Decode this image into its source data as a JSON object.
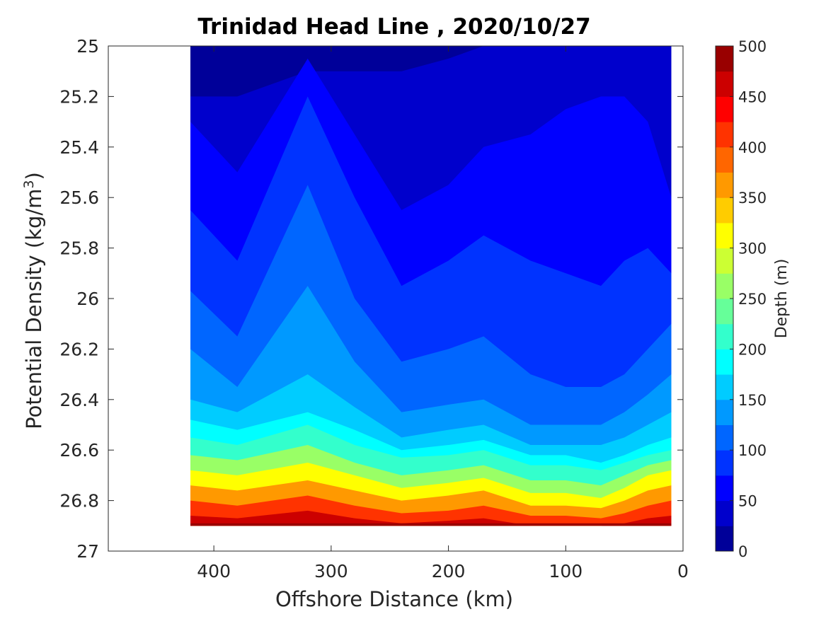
{
  "chart_data": {
    "type": "contour",
    "title": "Trinidad Head Line , 2020/10/27",
    "xlabel": "Offshore Distance (km)",
    "ylabel_main": "Potential Density (kg/m",
    "ylabel_sup": "3",
    "ylabel_close": ")",
    "x_reversed": true,
    "xlim": [
      0,
      490
    ],
    "ylim": [
      25,
      27
    ],
    "y_reversed": true,
    "xticks": [
      400,
      300,
      200,
      100,
      0
    ],
    "xtick_labels": [
      "400",
      "300",
      "200",
      "100",
      "0"
    ],
    "yticks": [
      25,
      25.2,
      25.4,
      25.6,
      25.8,
      26,
      26.2,
      26.4,
      26.6,
      26.8,
      27
    ],
    "ytick_labels": [
      "25",
      "25.2",
      "25.4",
      "25.6",
      "25.8",
      "26",
      "26.2",
      "26.4",
      "26.6",
      "26.8",
      "27"
    ],
    "colorbar": {
      "label": "Depth (m)",
      "range": [
        0,
        500
      ],
      "ticks": [
        0,
        50,
        100,
        150,
        200,
        250,
        300,
        350,
        400,
        450,
        500
      ],
      "tick_labels": [
        "0",
        "50",
        "100",
        "150",
        "200",
        "250",
        "300",
        "350",
        "400",
        "450",
        "500"
      ],
      "level_step": 25,
      "colormap": "jet"
    },
    "grid": false,
    "stations_x": [
      420,
      380,
      320,
      280,
      240,
      200,
      170,
      130,
      100,
      70,
      50,
      30,
      10
    ],
    "isopycnal_depth_contours": [
      {
        "depth": 25,
        "y": [
          25.2,
          25.2,
          25.1,
          25.1,
          25.1,
          25.05,
          25.0,
          25.0,
          25.0,
          25.0,
          25.0,
          25.0,
          25.0
        ]
      },
      {
        "depth": 50,
        "y": [
          25.3,
          25.5,
          25.05,
          25.35,
          25.65,
          25.55,
          25.4,
          25.35,
          25.25,
          25.2,
          25.2,
          25.3,
          25.6
        ]
      },
      {
        "depth": 75,
        "y": [
          25.65,
          25.85,
          25.2,
          25.6,
          25.95,
          25.85,
          25.75,
          25.85,
          25.9,
          25.95,
          25.85,
          25.8,
          25.9
        ]
      },
      {
        "depth": 100,
        "y": [
          25.97,
          26.15,
          25.55,
          26.0,
          26.25,
          26.2,
          26.15,
          26.3,
          26.35,
          26.35,
          26.3,
          26.2,
          26.1
        ]
      },
      {
        "depth": 125,
        "y": [
          26.2,
          26.35,
          25.95,
          26.25,
          26.45,
          26.42,
          26.4,
          26.5,
          26.5,
          26.5,
          26.45,
          26.38,
          26.3
        ]
      },
      {
        "depth": 150,
        "y": [
          26.4,
          26.45,
          26.3,
          26.43,
          26.55,
          26.52,
          26.5,
          26.58,
          26.58,
          26.58,
          26.55,
          26.5,
          26.45
        ]
      },
      {
        "depth": 175,
        "y": [
          26.48,
          26.52,
          26.45,
          26.52,
          26.6,
          26.58,
          26.56,
          26.62,
          26.62,
          26.65,
          26.62,
          26.58,
          26.55
        ]
      },
      {
        "depth": 200,
        "y": [
          26.55,
          26.58,
          26.5,
          26.58,
          26.63,
          26.62,
          26.6,
          26.66,
          26.66,
          26.68,
          26.65,
          26.62,
          26.6
        ]
      },
      {
        "depth": 250,
        "y": [
          26.62,
          26.64,
          26.58,
          26.65,
          26.7,
          26.68,
          26.66,
          26.72,
          26.72,
          26.74,
          26.7,
          26.66,
          26.64
        ]
      },
      {
        "depth": 300,
        "y": [
          26.68,
          26.7,
          26.65,
          26.7,
          26.75,
          26.73,
          26.71,
          26.77,
          26.77,
          26.79,
          26.75,
          26.7,
          26.68
        ]
      },
      {
        "depth": 350,
        "y": [
          26.74,
          26.76,
          26.72,
          26.76,
          26.8,
          26.78,
          26.76,
          26.82,
          26.82,
          26.83,
          26.8,
          26.76,
          26.74
        ]
      },
      {
        "depth": 400,
        "y": [
          26.8,
          26.82,
          26.78,
          26.82,
          26.85,
          26.84,
          26.82,
          26.86,
          26.86,
          26.87,
          26.85,
          26.82,
          26.8
        ]
      },
      {
        "depth": 450,
        "y": [
          26.86,
          26.87,
          26.84,
          26.87,
          26.89,
          26.88,
          26.87,
          26.9,
          26.9,
          26.9,
          26.89,
          26.87,
          26.86
        ]
      }
    ]
  }
}
